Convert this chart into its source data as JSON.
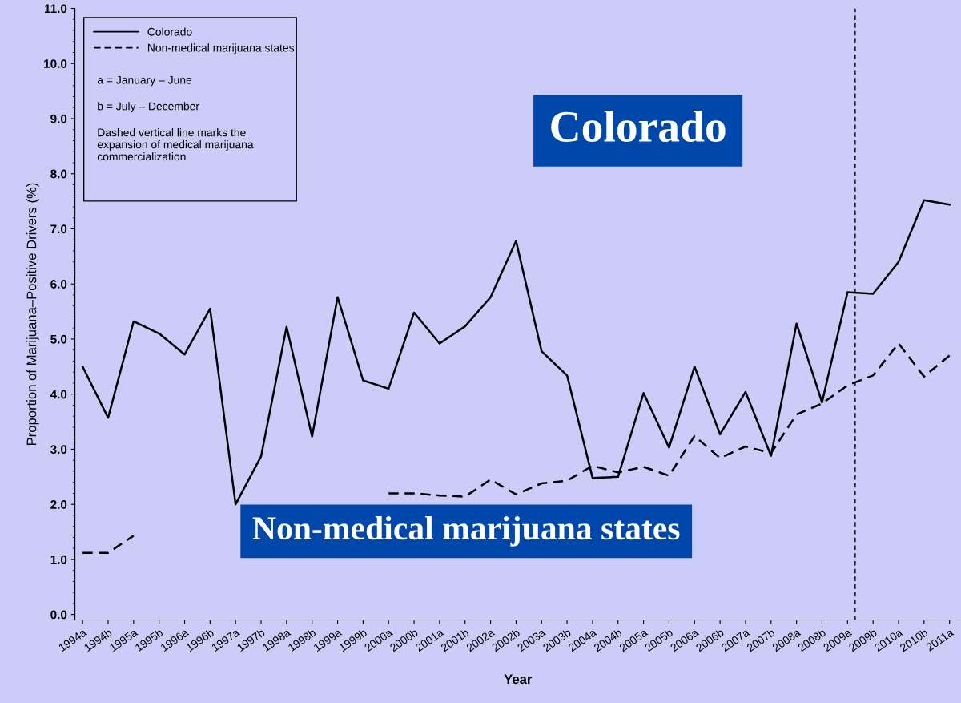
{
  "chart_data": {
    "type": "line",
    "xlabel": "Year",
    "ylabel": "Proportion of Marijuana–Positive Drivers (%)",
    "categories": [
      "1994a",
      "1994b",
      "1995a",
      "1995b",
      "1996a",
      "1996b",
      "1997a",
      "1997b",
      "1998a",
      "1998b",
      "1999a",
      "1999b",
      "2000a",
      "2000b",
      "2001a",
      "2001b",
      "2002a",
      "2002b",
      "2003a",
      "2003b",
      "2004a",
      "2004b",
      "2005a",
      "2005b",
      "2006a",
      "2006b",
      "2007a",
      "2007b",
      "2008a",
      "2008b",
      "2009a",
      "2009b",
      "2010a",
      "2010b",
      "2011a"
    ],
    "series": [
      {
        "name": "Colorado",
        "color": "#000000",
        "line_style": "solid",
        "values": [
          4.5,
          3.57,
          5.32,
          5.1,
          4.72,
          5.55,
          2.0,
          2.87,
          5.22,
          3.23,
          5.76,
          4.25,
          4.1,
          5.48,
          4.92,
          5.23,
          5.76,
          6.78,
          4.78,
          4.34,
          2.48,
          2.5,
          4.02,
          3.03,
          4.5,
          3.27,
          4.04,
          2.88,
          5.28,
          3.85,
          5.85,
          5.82,
          6.4,
          7.52,
          7.44
        ]
      },
      {
        "name": "Non-medical marijuana states",
        "color": "#000000",
        "line_style": "dashed",
        "values": [
          1.12,
          1.12,
          1.43,
          null,
          null,
          null,
          null,
          null,
          null,
          null,
          null,
          null,
          2.2,
          2.2,
          2.16,
          2.14,
          2.45,
          2.18,
          2.38,
          2.43,
          2.7,
          2.58,
          2.68,
          2.52,
          3.24,
          2.84,
          3.05,
          2.93,
          3.63,
          3.83,
          4.16,
          4.34,
          4.92,
          4.32,
          4.7
        ]
      }
    ],
    "ylim": [
      -0.1,
      11
    ],
    "yticks": [
      {
        "value": 0,
        "label": "0.0"
      },
      {
        "value": 1,
        "label": "1.0"
      },
      {
        "value": 2,
        "label": "2.0"
      },
      {
        "value": 3,
        "label": "3.0"
      },
      {
        "value": 4,
        "label": "4.0"
      },
      {
        "value": 5,
        "label": "5.0"
      },
      {
        "value": 6,
        "label": "6.0"
      },
      {
        "value": 7,
        "label": "7.0"
      },
      {
        "value": 8,
        "label": "8.0"
      },
      {
        "value": 9,
        "label": "9.0"
      },
      {
        "value": 10,
        "label": "10.0"
      },
      {
        "value": 11,
        "label": "11.0"
      }
    ],
    "legend": "top left",
    "grid": false,
    "annotations": [
      "a = January – June",
      "b = July – December",
      "Dashed vertical line marks the\nexpansion of medical marijuana\ncommercialization",
      "Colorado",
      "Non-medical marijuana states"
    ]
  }
}
